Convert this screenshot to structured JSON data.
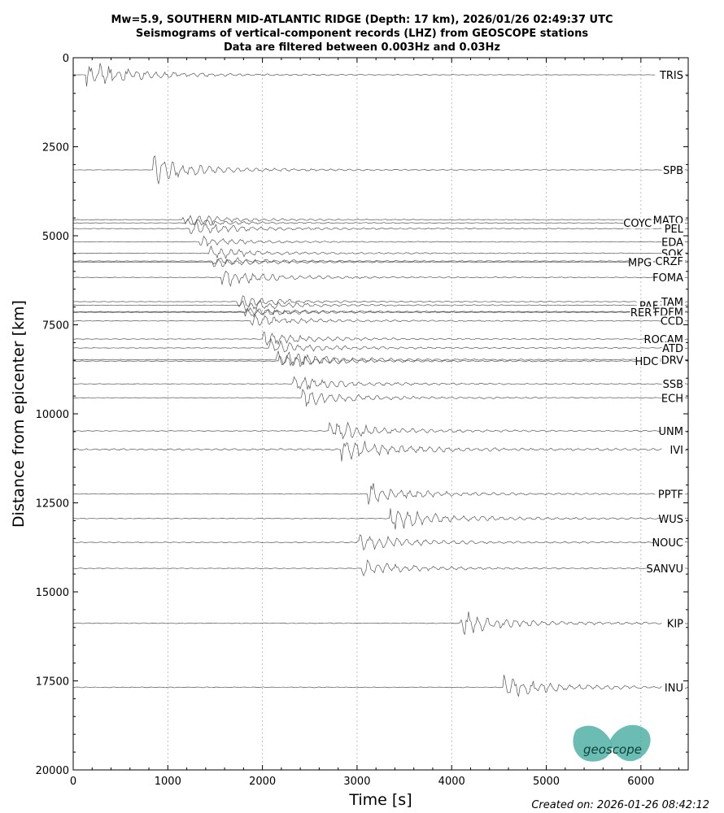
{
  "chart_data": {
    "type": "line",
    "title": [
      "Mw=5.9, SOUTHERN MID-ATLANTIC RIDGE (Depth: 17 km), 2026/01/26 02:49:37 UTC",
      "Seismograms of vertical-component records (LHZ) from GEOSCOPE stations",
      "Data are filtered between 0.003Hz and 0.03Hz"
    ],
    "xlabel": "Time [s]",
    "ylabel": "Distance from epicenter [km]",
    "xlim": [
      0,
      6500
    ],
    "ylim": [
      20000,
      0
    ],
    "y_inverted": true,
    "xticks": [
      "0",
      "1000",
      "2000",
      "3000",
      "4000",
      "5000",
      "6000"
    ],
    "yticks": [
      "0",
      "2500",
      "5000",
      "7500",
      "10000",
      "12500",
      "15000",
      "17500",
      "20000"
    ],
    "vertical_grid": "dotted at x ticks",
    "trace_color": "#555555",
    "stations": [
      {
        "name": "TRIS",
        "distance": 480,
        "arrival": 130,
        "amp": 18,
        "tail": 0.15
      },
      {
        "name": "SPB",
        "distance": 3150,
        "arrival": 840,
        "amp": 16,
        "tail": 0.2
      },
      {
        "name": "MATO",
        "distance": 4550,
        "arrival": 1160,
        "amp": 7,
        "tail": 0.3
      },
      {
        "name": "COYC",
        "distance": 4640,
        "arrival": 1190,
        "amp": 5,
        "tail": 0.3
      },
      {
        "name": "PEL",
        "distance": 4800,
        "arrival": 1230,
        "amp": 10,
        "tail": 0.35
      },
      {
        "name": "EDA",
        "distance": 5170,
        "arrival": 1340,
        "amp": 6,
        "tail": 0.3
      },
      {
        "name": "SOK",
        "distance": 5490,
        "arrival": 1420,
        "amp": 8,
        "tail": 0.35
      },
      {
        "name": "CRZF",
        "distance": 5710,
        "arrival": 1470,
        "amp": 6,
        "tail": 0.3
      },
      {
        "name": "MPG",
        "distance": 5740,
        "arrival": 1480,
        "amp": 6,
        "tail": 0.3
      },
      {
        "name": "FOMA",
        "distance": 6170,
        "arrival": 1570,
        "amp": 11,
        "tail": 0.35
      },
      {
        "name": "TAM",
        "distance": 6850,
        "arrival": 1740,
        "amp": 7,
        "tail": 0.3
      },
      {
        "name": "PAF",
        "distance": 6950,
        "arrival": 1770,
        "amp": 8,
        "tail": 0.3
      },
      {
        "name": "FDFM",
        "distance": 7130,
        "arrival": 1810,
        "amp": 6,
        "tail": 0.3
      },
      {
        "name": "RER",
        "distance": 7150,
        "arrival": 1820,
        "amp": 6,
        "tail": 0.3
      },
      {
        "name": "CCD",
        "distance": 7390,
        "arrival": 1880,
        "amp": 8,
        "tail": 0.35
      },
      {
        "name": "ROCAM",
        "distance": 7900,
        "arrival": 2000,
        "amp": 9,
        "tail": 0.35
      },
      {
        "name": "ATD",
        "distance": 8150,
        "arrival": 2070,
        "amp": 10,
        "tail": 0.35
      },
      {
        "name": "DRV",
        "distance": 8480,
        "arrival": 2150,
        "amp": 12,
        "tail": 0.4
      },
      {
        "name": "HDC",
        "distance": 8520,
        "arrival": 2170,
        "amp": 10,
        "tail": 0.4
      },
      {
        "name": "SSB",
        "distance": 9160,
        "arrival": 2320,
        "amp": 10,
        "tail": 0.35
      },
      {
        "name": "ECH",
        "distance": 9550,
        "arrival": 2420,
        "amp": 11,
        "tail": 0.35
      },
      {
        "name": "UNM",
        "distance": 10480,
        "arrival": 2700,
        "amp": 13,
        "tail": 0.4
      },
      {
        "name": "IVI",
        "distance": 11000,
        "arrival": 2830,
        "amp": 14,
        "tail": 0.9
      },
      {
        "name": "PPTF",
        "distance": 12250,
        "arrival": 3120,
        "amp": 13,
        "tail": 0.35
      },
      {
        "name": "WUS",
        "distance": 12940,
        "arrival": 3350,
        "amp": 15,
        "tail": 0.4
      },
      {
        "name": "NOUC",
        "distance": 13610,
        "arrival": 3000,
        "amp": 12,
        "tail": 0.45
      },
      {
        "name": "SANVU",
        "distance": 14340,
        "arrival": 3050,
        "amp": 10,
        "tail": 0.35
      },
      {
        "name": "KIP",
        "distance": 15880,
        "arrival": 4100,
        "amp": 14,
        "tail": 0.45
      },
      {
        "name": "INU",
        "distance": 17680,
        "arrival": 4550,
        "amp": 14,
        "tail": 0.45
      }
    ]
  },
  "logo": {
    "text": "geoscope",
    "color": "#3aa79a"
  },
  "footer": "Created on: 2026-01-26 08:42:12"
}
